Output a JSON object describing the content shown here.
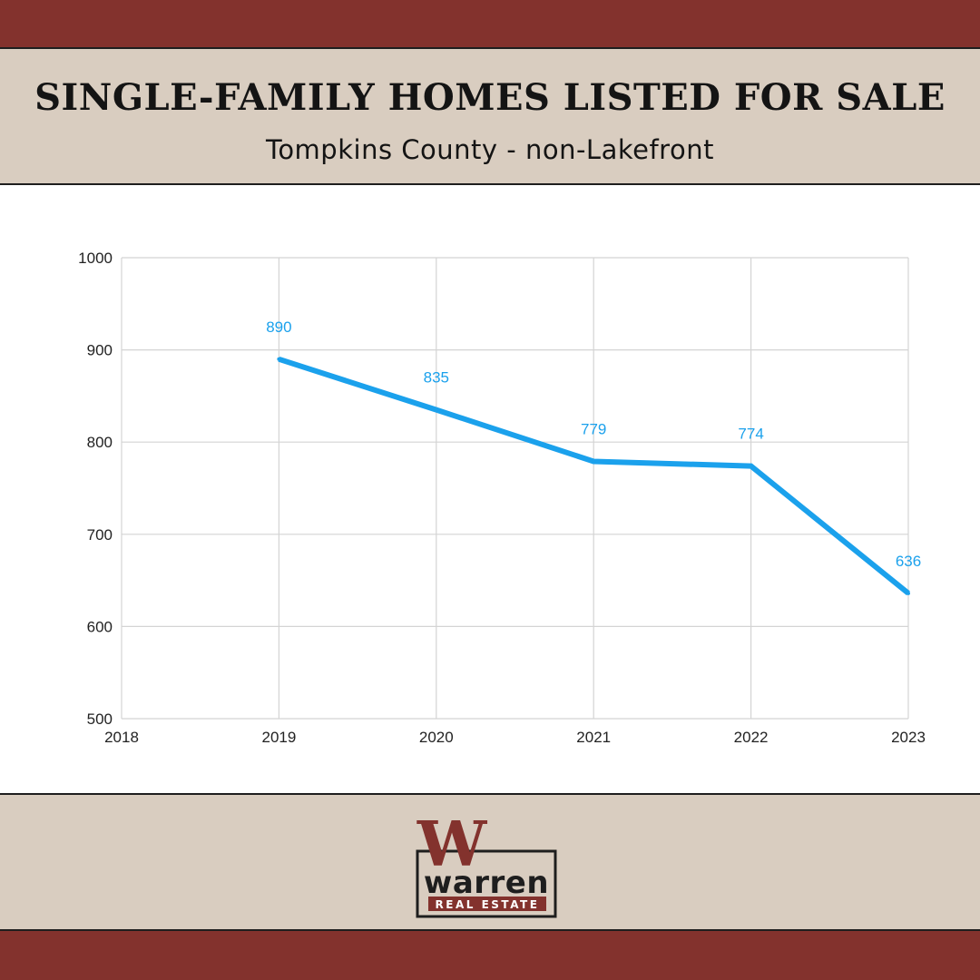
{
  "colors": {
    "band": "#83322d",
    "panel": "#d9cdc0",
    "line": "#1ba1ec",
    "grid": "#d4d4d4",
    "logo_dark": "#1e1e1e",
    "logo_red": "#83322d"
  },
  "header": {
    "title": "SINGLE-FAMILY HOMES LISTED FOR SALE",
    "subtitle": "Tompkins County - non-Lakefront"
  },
  "chart_data": {
    "type": "line",
    "x_ticks": [
      "2018",
      "2019",
      "2020",
      "2021",
      "2022",
      "2023"
    ],
    "x": [
      2019,
      2020,
      2021,
      2022,
      2023
    ],
    "values": [
      890,
      835,
      779,
      774,
      636
    ],
    "xlim": [
      2018,
      2023
    ],
    "ylim": [
      500,
      1000
    ],
    "y_ticks": [
      1000,
      900,
      800,
      700,
      600,
      500
    ],
    "grid": true,
    "data_labels": true
  },
  "footer": {
    "logo": {
      "letter": "W",
      "brand": "warren",
      "tagline": "REAL ESTATE"
    }
  }
}
